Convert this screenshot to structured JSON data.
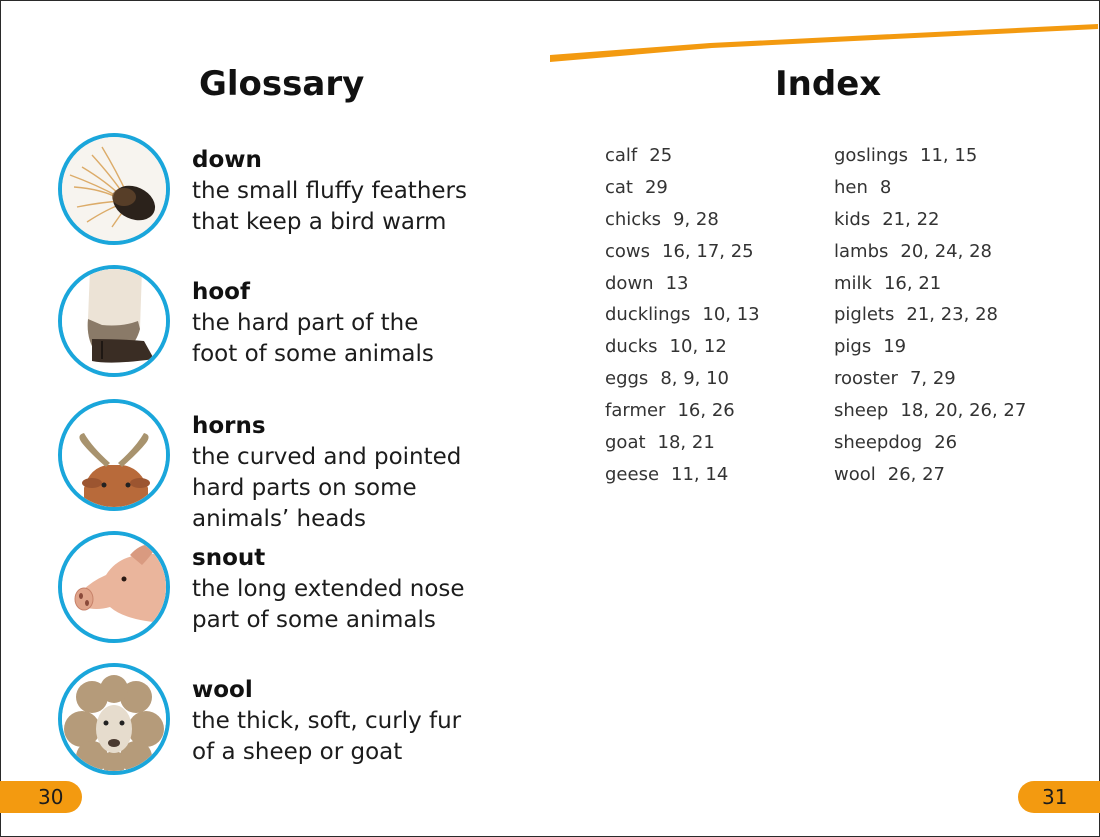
{
  "colors": {
    "accent_orange": "#f39a10",
    "ring_blue": "#1aa6db",
    "text": "#1c1c1c"
  },
  "glossary": {
    "title": "Glossary",
    "entries": [
      {
        "term": "down",
        "line1": "the small fluffy feathers",
        "line2": "that keep a bird warm",
        "line3": "",
        "image": "fluffy-feather"
      },
      {
        "term": "hoof",
        "line1": "the hard part of the",
        "line2": "foot of some animals",
        "line3": "",
        "image": "hoof"
      },
      {
        "term": "horns",
        "line1": "the curved and pointed",
        "line2": "hard parts on some",
        "line3": "animals’ heads",
        "image": "goat-horns"
      },
      {
        "term": "snout",
        "line1": "the long extended nose",
        "line2": "part of some animals",
        "line3": "",
        "image": "pig-snout"
      },
      {
        "term": "wool",
        "line1": "the thick, soft, curly fur",
        "line2": "of a sheep or goat",
        "line3": "",
        "image": "woolly-sheep"
      }
    ]
  },
  "index": {
    "title": "Index",
    "column1": [
      {
        "word": "calf",
        "pages": "25"
      },
      {
        "word": "cat",
        "pages": "29"
      },
      {
        "word": "chicks",
        "pages": "9, 28"
      },
      {
        "word": "cows",
        "pages": "16, 17, 25"
      },
      {
        "word": "down",
        "pages": "13"
      },
      {
        "word": "ducklings",
        "pages": "10, 13"
      },
      {
        "word": "ducks",
        "pages": "10, 12"
      },
      {
        "word": "eggs",
        "pages": "8, 9, 10"
      },
      {
        "word": "farmer",
        "pages": "16, 26"
      },
      {
        "word": "goat",
        "pages": "18, 21"
      },
      {
        "word": "geese",
        "pages": "11, 14"
      }
    ],
    "column2": [
      {
        "word": "goslings",
        "pages": "11, 15"
      },
      {
        "word": "hen",
        "pages": "8"
      },
      {
        "word": "kids",
        "pages": "21, 22"
      },
      {
        "word": "lambs",
        "pages": "20, 24, 28"
      },
      {
        "word": "milk",
        "pages": "16, 21"
      },
      {
        "word": "piglets",
        "pages": "21, 23, 28"
      },
      {
        "word": "pigs",
        "pages": "19"
      },
      {
        "word": "rooster",
        "pages": "7, 29"
      },
      {
        "word": "sheep",
        "pages": "18, 20, 26, 27"
      },
      {
        "word": "sheepdog",
        "pages": "26"
      },
      {
        "word": "wool",
        "pages": "26, 27"
      }
    ]
  },
  "page_numbers": {
    "left": "30",
    "right": "31"
  }
}
